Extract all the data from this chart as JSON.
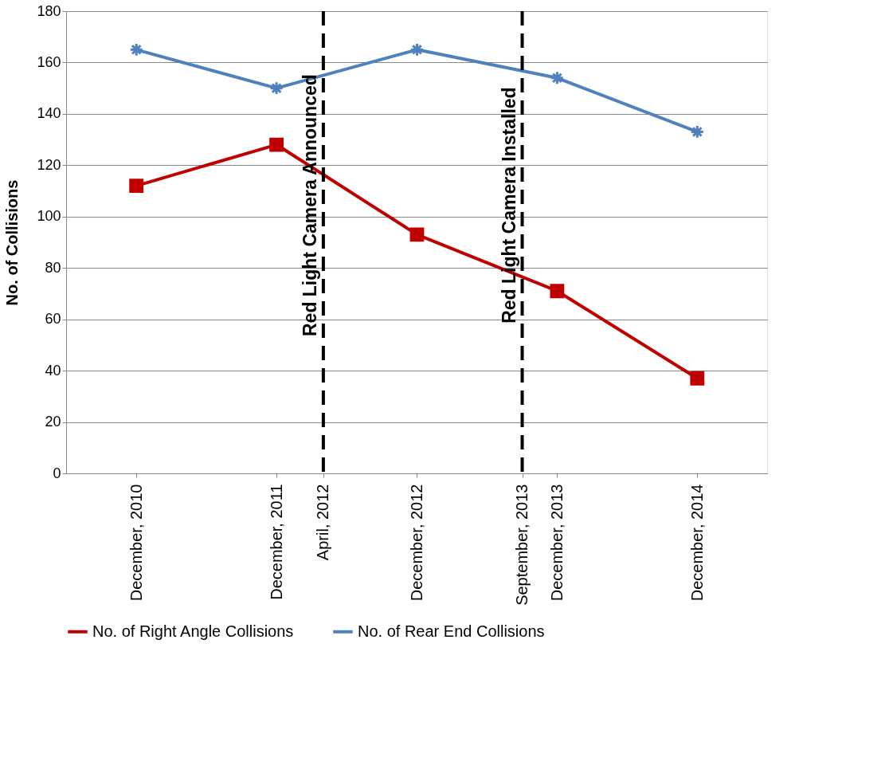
{
  "chart_data": {
    "type": "line",
    "ylabel": "No. of Collisions",
    "x": [
      "2010-12",
      "2011-12",
      "2012-12",
      "2013-12",
      "2014-12"
    ],
    "xlim": [
      "2010-06",
      "2015-06"
    ],
    "xticks": [
      {
        "value": "2010-12",
        "label": "December, 2010"
      },
      {
        "value": "2011-12",
        "label": "December, 2011"
      },
      {
        "value": "2012-04",
        "label": "April, 2012"
      },
      {
        "value": "2012-12",
        "label": "December, 2012"
      },
      {
        "value": "2013-09",
        "label": "September, 2013"
      },
      {
        "value": "2013-12",
        "label": "December, 2013"
      },
      {
        "value": "2014-12",
        "label": "December, 2014"
      }
    ],
    "ylim": [
      0,
      180
    ],
    "yticks": [
      0,
      20,
      40,
      60,
      80,
      100,
      120,
      140,
      160,
      180
    ],
    "series": [
      {
        "name": "No. of Right Angle Collisions",
        "color": "#c00000",
        "marker": "square",
        "values": [
          112,
          128,
          93,
          71,
          37
        ]
      },
      {
        "name": "No. of Rear End Collisions",
        "color": "#4f81bd",
        "marker": "cross",
        "values": [
          165,
          150,
          165,
          154,
          133
        ]
      }
    ],
    "ref_lines": [
      {
        "axis": "x",
        "value": "2012-04",
        "label": "Red Light Camera Announced",
        "color": "#000000",
        "line_style": "dashed"
      },
      {
        "axis": "x",
        "value": "2013-09",
        "label": "Red Light Camera Installed",
        "color": "#000000",
        "line_style": "dashed"
      }
    ],
    "grid": "y",
    "legend": "bottom",
    "line_style": "solid"
  }
}
